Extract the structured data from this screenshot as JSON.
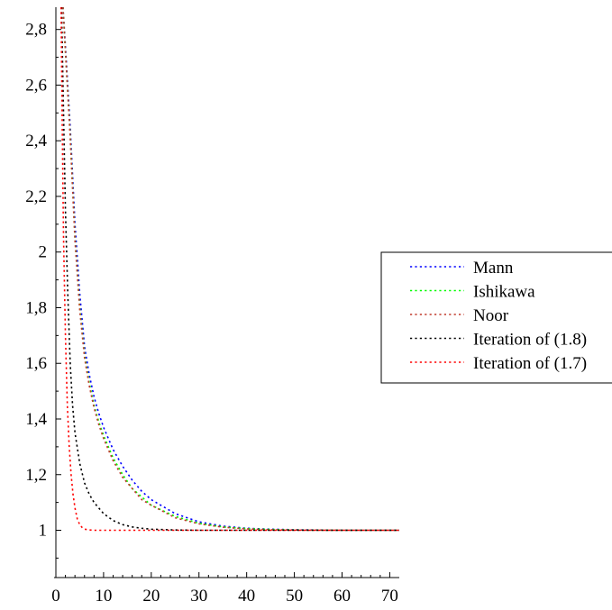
{
  "chart_data": {
    "type": "line",
    "title": "",
    "xlabel": "",
    "ylabel": "",
    "xlim": [
      0,
      72
    ],
    "ylim": [
      0.83,
      2.88
    ],
    "xticks": [
      0,
      10,
      20,
      30,
      40,
      50,
      60,
      70
    ],
    "xtick_labels": [
      "0",
      "10",
      "20",
      "30",
      "40",
      "50",
      "60",
      "70"
    ],
    "yticks": [
      1,
      1.2,
      1.4,
      1.6,
      1.8,
      2,
      2.2,
      2.4,
      2.6,
      2.8
    ],
    "ytick_labels": [
      "1",
      "1,2",
      "1,4",
      "1,6",
      "1,8",
      "2",
      "2,2",
      "2,4",
      "2,6",
      "2,8"
    ],
    "grid": false,
    "legend_position": "right",
    "line_style": "dotted",
    "series": [
      {
        "name": "Mann",
        "color": "#0000ff",
        "x": [
          1.5,
          2,
          3,
          4,
          5,
          6,
          7,
          8,
          9,
          10,
          12,
          14,
          16,
          18,
          20,
          25,
          30,
          35,
          40,
          45,
          50,
          60,
          72
        ],
        "y": [
          2.88,
          2.74,
          2.45,
          2.1,
          1.85,
          1.66,
          1.56,
          1.48,
          1.42,
          1.37,
          1.29,
          1.23,
          1.18,
          1.14,
          1.11,
          1.06,
          1.03,
          1.015,
          1.007,
          1.004,
          1.002,
          1.0,
          1.0
        ]
      },
      {
        "name": "Ishikawa",
        "color": "#00ff00",
        "x": [
          1.5,
          2,
          3,
          4,
          5,
          6,
          7,
          8,
          9,
          10,
          12,
          14,
          16,
          18,
          20,
          25,
          30,
          35,
          40,
          45,
          50,
          60,
          72
        ],
        "y": [
          2.88,
          2.72,
          2.42,
          2.05,
          1.8,
          1.63,
          1.53,
          1.45,
          1.39,
          1.34,
          1.26,
          1.2,
          1.15,
          1.12,
          1.09,
          1.05,
          1.025,
          1.012,
          1.006,
          1.003,
          1.001,
          1.0,
          1.0
        ]
      },
      {
        "name": "Noor",
        "color": "#c0392b",
        "x": [
          1.5,
          2,
          3,
          4,
          5,
          6,
          7,
          8,
          9,
          10,
          12,
          14,
          16,
          18,
          20,
          25,
          30,
          35,
          40,
          45,
          50,
          60,
          72
        ],
        "y": [
          2.88,
          2.72,
          2.41,
          2.04,
          1.79,
          1.62,
          1.52,
          1.44,
          1.38,
          1.33,
          1.25,
          1.19,
          1.15,
          1.11,
          1.09,
          1.045,
          1.023,
          1.011,
          1.005,
          1.002,
          1.001,
          1.0,
          1.0
        ]
      },
      {
        "name": "Iteration of (1.8)",
        "color": "#000000",
        "x": [
          1.2,
          1.5,
          2,
          2.5,
          3,
          3.5,
          4,
          5,
          6,
          7,
          8,
          10,
          12,
          14,
          16,
          18,
          20,
          25,
          30,
          40,
          72
        ],
        "y": [
          2.88,
          2.6,
          2.15,
          1.85,
          1.6,
          1.45,
          1.35,
          1.24,
          1.17,
          1.13,
          1.1,
          1.06,
          1.035,
          1.02,
          1.012,
          1.007,
          1.004,
          1.001,
          1.0,
          1.0,
          1.0
        ]
      },
      {
        "name": "Iteration of (1.7)",
        "color": "#ff0000",
        "x": [
          1.1,
          1.3,
          1.6,
          2,
          2.4,
          2.8,
          3.2,
          3.6,
          4,
          4.5,
          5,
          5.5,
          6,
          7,
          8,
          10,
          72
        ],
        "y": [
          2.88,
          2.5,
          2.05,
          1.7,
          1.45,
          1.3,
          1.2,
          1.13,
          1.08,
          1.04,
          1.02,
          1.01,
          1.004,
          1.001,
          1.0,
          1.0,
          1.0
        ]
      }
    ]
  }
}
